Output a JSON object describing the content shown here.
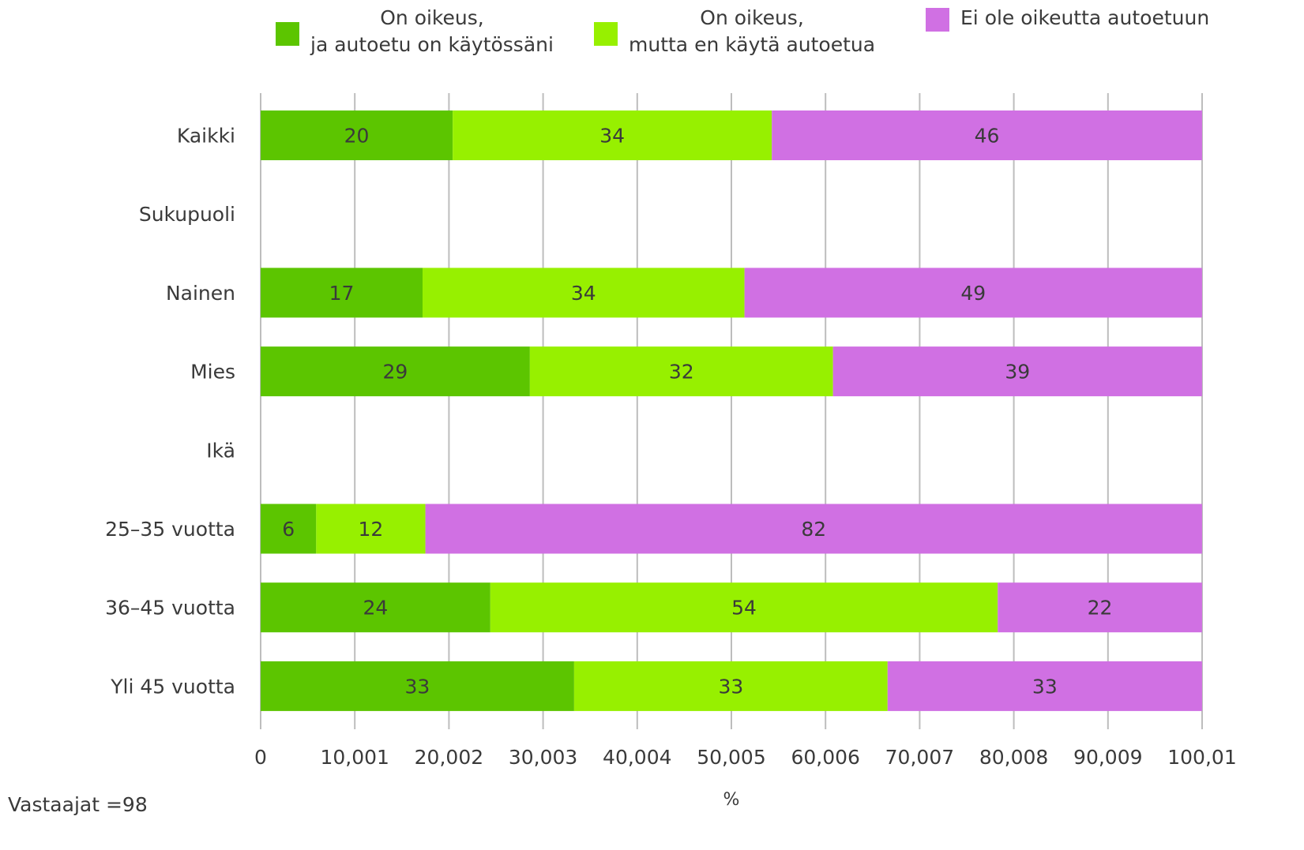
{
  "chart_data": {
    "type": "bar",
    "orientation": "horizontal",
    "stacked": true,
    "categories": [
      "Kaikki",
      "Sukupuoli",
      "Nainen",
      "Mies",
      "Ikä",
      "25–35 vuotta",
      "36–45 vuotta",
      "Yli 45 vuotta"
    ],
    "series": [
      {
        "name": "On oikeus,\nja autoetu on käytössäni",
        "color": "#5cc500",
        "values": [
          20.4,
          null,
          17.2,
          28.6,
          null,
          5.9,
          24.4,
          33.3
        ],
        "labels": [
          "20",
          "",
          "17",
          "29",
          "",
          "6",
          "24",
          "33"
        ]
      },
      {
        "name": "On oikeus,\nmutta en käytä autoetua",
        "color": "#97f000",
        "values": [
          33.9,
          null,
          34.2,
          32.2,
          null,
          11.6,
          53.9,
          33.3
        ],
        "labels": [
          "34",
          "",
          "34",
          "32",
          "",
          "12",
          "54",
          "33"
        ]
      },
      {
        "name": "Ei ole oikeutta autoetuun",
        "color": "#d070e3",
        "values": [
          45.7,
          null,
          48.6,
          39.2,
          null,
          82.5,
          21.7,
          33.4
        ],
        "labels": [
          "46",
          "",
          "49",
          "39",
          "",
          "82",
          "22",
          "33"
        ]
      }
    ],
    "xticks": [
      "0",
      "10,001",
      "20,002",
      "30,003",
      "40,004",
      "50,005",
      "60,006",
      "70,007",
      "80,008",
      "90,009",
      "100,01"
    ],
    "xlim": [
      0,
      100.01
    ],
    "xlabel": "%",
    "grid": "vertical",
    "legend_position": "top"
  },
  "footnote": "Vastaajat =98"
}
